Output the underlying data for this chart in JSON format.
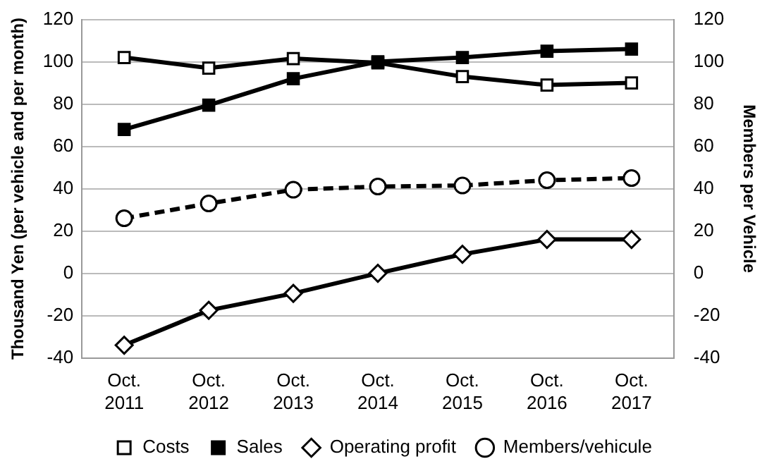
{
  "chart_data": {
    "type": "line",
    "ylabel": "Thousand Yen (per vehicle and per month)",
    "y2label": "Members per Vehicle",
    "categories": [
      "Oct. 2011",
      "Oct. 2012",
      "Oct. 2013",
      "Oct. 2014",
      "Oct. 2015",
      "Oct. 2016",
      "Oct. 2017"
    ],
    "series": [
      {
        "name": "Costs",
        "color": "#000000",
        "marker": "square",
        "line_style": "solid",
        "values": [
          102,
          97,
          101.5,
          99.5,
          93,
          89,
          90
        ]
      },
      {
        "name": "Sales",
        "color": "#000000",
        "marker": "square",
        "line_style": "solid",
        "colors": [
          "#000000",
          "#000000",
          "#000000",
          "#000000",
          "#000000",
          "#000000",
          "#000000"
        ],
        "values": [
          68,
          79.5,
          92,
          100,
          102,
          105,
          106
        ]
      },
      {
        "name": "Operating profit",
        "color": "#000000",
        "marker": "diamond",
        "line_style": "solid",
        "values": [
          -34,
          -17.5,
          -9.5,
          0,
          9,
          16,
          16
        ]
      },
      {
        "name": "Members/vehicule",
        "color": "#000000",
        "marker": "circle",
        "line_style": "dashed",
        "axis": "y2",
        "values": [
          26,
          33,
          39.5,
          41,
          41.5,
          44,
          45
        ]
      }
    ],
    "ylim": [
      -40,
      120
    ],
    "yticks": [
      -40,
      -20,
      0,
      20,
      40,
      60,
      80,
      100,
      120
    ],
    "y2lim": [
      -40,
      120
    ],
    "y2ticks": [
      -40,
      -20,
      0,
      20,
      40,
      60,
      80,
      100,
      120
    ],
    "grid": "y",
    "legend": "bottom"
  }
}
